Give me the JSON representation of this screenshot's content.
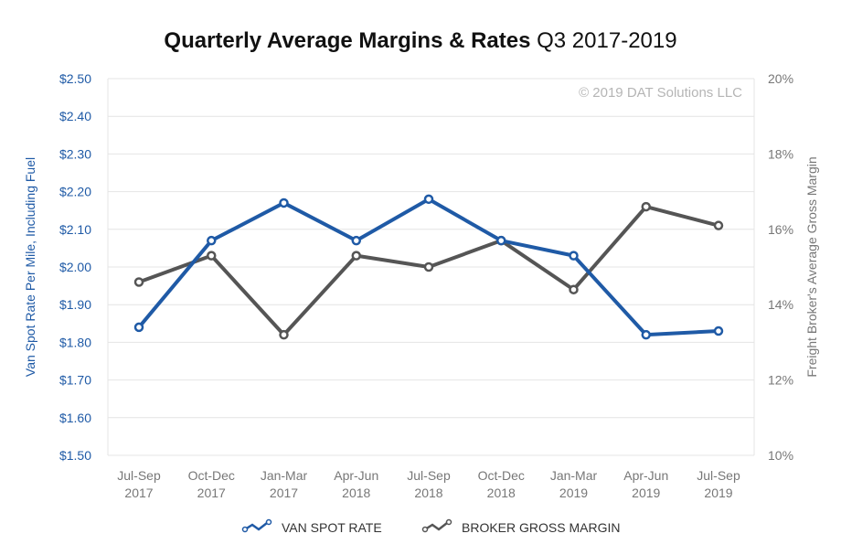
{
  "chart_data": {
    "type": "line",
    "title": "Quarterly Average Margins & Rates",
    "title_suffix": "Q3 2017-2019",
    "watermark": "© 2019 DAT Solutions LLC",
    "categories": [
      [
        "Jul-Sep",
        "2017"
      ],
      [
        "Oct-Dec",
        "2017"
      ],
      [
        "Jan-Mar",
        "2017"
      ],
      [
        "Apr-Jun",
        "2018"
      ],
      [
        "Jul-Sep",
        "2018"
      ],
      [
        "Oct-Dec",
        "2018"
      ],
      [
        "Jan-Mar",
        "2019"
      ],
      [
        "Apr-Jun",
        "2019"
      ],
      [
        "Jul-Sep",
        "2019"
      ]
    ],
    "ylabel_left": "Van Spot Rate Per Mile, Including Fuel",
    "ylabel_right": "Freight Broker's Average Gross Margin",
    "ylim_left": [
      1.5,
      2.5
    ],
    "ylim_right": [
      10,
      20
    ],
    "left_ticks": [
      "$1.50",
      "$1.60",
      "$1.70",
      "$1.80",
      "$1.90",
      "$2.00",
      "$2.10",
      "$2.20",
      "$2.30",
      "$2.40",
      "$2.50"
    ],
    "right_ticks": [
      "10%",
      "12%",
      "14%",
      "16%",
      "18%",
      "20%"
    ],
    "grid": true,
    "legend_position": "bottom",
    "series": [
      {
        "name": "VAN SPOT RATE",
        "axis": "left",
        "color": "#1f5aa6",
        "values": [
          1.84,
          2.07,
          2.17,
          2.07,
          2.18,
          2.07,
          2.03,
          1.82,
          1.83
        ]
      },
      {
        "name": "BROKER GROSS MARGIN",
        "axis": "right",
        "color": "#555555",
        "values": [
          14.6,
          15.3,
          13.2,
          15.3,
          15.0,
          15.7,
          14.4,
          16.6,
          16.1
        ]
      }
    ]
  }
}
